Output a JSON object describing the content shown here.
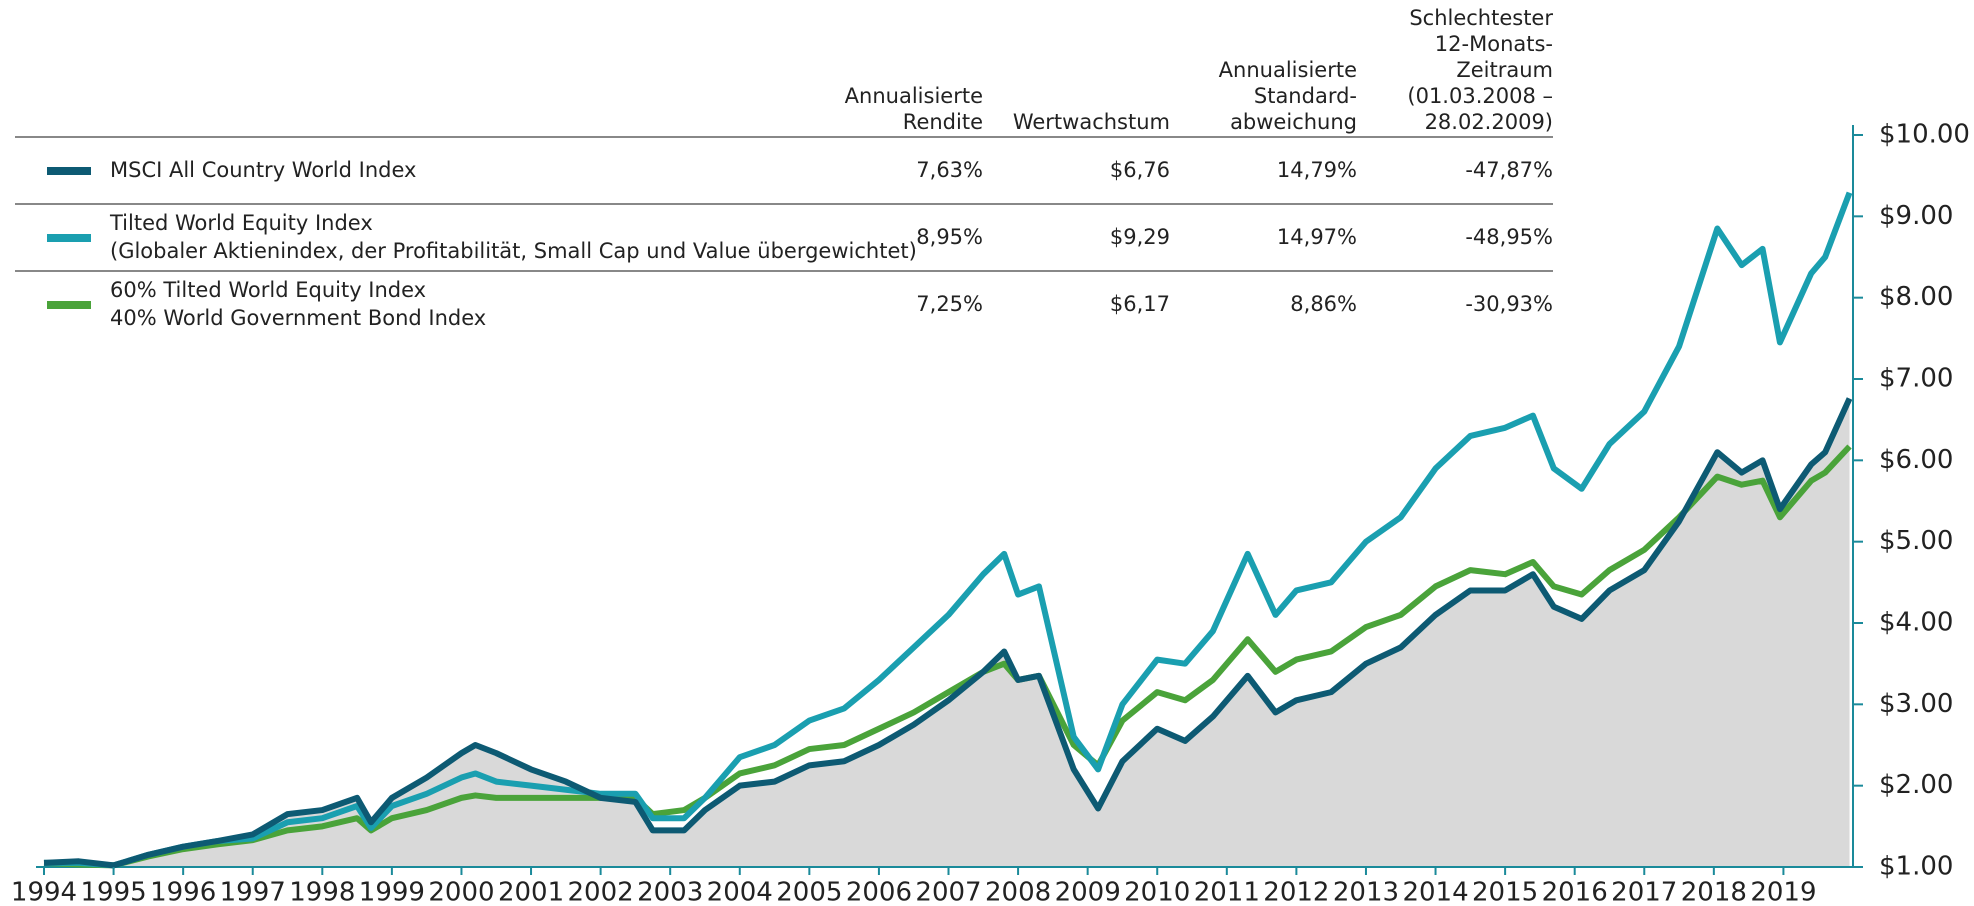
{
  "chart_data": {
    "type": "line",
    "table": {
      "columns": [
        [
          "Annualisierte",
          "Rendite"
        ],
        [
          "Wertwachstum"
        ],
        [
          "Annualisierte",
          "Standard-",
          "abweichung"
        ],
        [
          "Schlechtester",
          "12-Monats-",
          "Zeitraum",
          "(01.03.2008 –",
          "28.02.2009)"
        ]
      ],
      "rows": [
        [
          "7,63%",
          "$6,76",
          "14,79%",
          "-47,87%"
        ],
        [
          "8,95%",
          "$9,29",
          "14,97%",
          "-48,95%"
        ],
        [
          "7,25%",
          "$6,17",
          "8,86%",
          "-30,93%"
        ]
      ]
    },
    "x": [
      1994.0,
      1994.5,
      1995.0,
      1995.5,
      1996.0,
      1996.5,
      1997.0,
      1997.5,
      1998.0,
      1998.5,
      1998.7,
      1999.0,
      1999.5,
      2000.0,
      2000.2,
      2000.5,
      2001.0,
      2001.5,
      2002.0,
      2002.5,
      2002.75,
      2003.2,
      2003.5,
      2004.0,
      2004.5,
      2005.0,
      2005.5,
      2006.0,
      2006.5,
      2007.0,
      2007.5,
      2007.8,
      2008.0,
      2008.3,
      2008.8,
      2009.15,
      2009.5,
      2010.0,
      2010.4,
      2010.8,
      2011.3,
      2011.7,
      2012.0,
      2012.5,
      2013.0,
      2013.5,
      2014.0,
      2014.5,
      2015.0,
      2015.4,
      2015.7,
      2016.1,
      2016.5,
      2017.0,
      2017.5,
      2018.05,
      2018.4,
      2018.7,
      2018.95,
      2019.4,
      2019.6,
      2019.95
    ],
    "series": [
      {
        "name": [
          "MSCI All Country World Index"
        ],
        "color": "#0d5a73",
        "area": true,
        "values": [
          1.05,
          1.07,
          1.02,
          1.15,
          1.25,
          1.32,
          1.4,
          1.65,
          1.7,
          1.85,
          1.55,
          1.85,
          2.1,
          2.4,
          2.5,
          2.4,
          2.2,
          2.05,
          1.85,
          1.8,
          1.45,
          1.45,
          1.7,
          2.0,
          2.05,
          2.25,
          2.3,
          2.5,
          2.75,
          3.05,
          3.4,
          3.65,
          3.3,
          3.35,
          2.2,
          1.72,
          2.3,
          2.7,
          2.55,
          2.85,
          3.35,
          2.9,
          3.05,
          3.15,
          3.5,
          3.7,
          4.1,
          4.4,
          4.4,
          4.6,
          4.2,
          4.05,
          4.4,
          4.65,
          5.25,
          6.1,
          5.85,
          6.0,
          5.4,
          5.95,
          6.1,
          6.76
        ]
      },
      {
        "name": [
          "Tilted World Equity Index",
          "(Globaler Aktienindex, der Profitabilität, Small Cap und Value übergewichtet)"
        ],
        "color": "#1a9fb0",
        "values": [
          1.05,
          1.05,
          1.02,
          1.15,
          1.25,
          1.32,
          1.35,
          1.55,
          1.6,
          1.75,
          1.48,
          1.75,
          1.9,
          2.1,
          2.15,
          2.05,
          2.0,
          1.95,
          1.9,
          1.9,
          1.6,
          1.6,
          1.85,
          2.35,
          2.5,
          2.8,
          2.95,
          3.3,
          3.7,
          4.1,
          4.6,
          4.85,
          4.35,
          4.45,
          2.6,
          2.2,
          3.0,
          3.55,
          3.5,
          3.9,
          4.85,
          4.1,
          4.4,
          4.5,
          5.0,
          5.3,
          5.9,
          6.3,
          6.4,
          6.55,
          5.9,
          5.65,
          6.2,
          6.6,
          7.4,
          8.85,
          8.4,
          8.6,
          7.45,
          8.3,
          8.5,
          9.29
        ]
      },
      {
        "name": [
          "60% Tilted World Equity Index",
          "40% World Government Bond Index"
        ],
        "color": "#4aa33a",
        "values": [
          1.05,
          1.03,
          1.02,
          1.13,
          1.22,
          1.28,
          1.33,
          1.45,
          1.5,
          1.6,
          1.45,
          1.6,
          1.7,
          1.85,
          1.88,
          1.85,
          1.85,
          1.85,
          1.85,
          1.85,
          1.65,
          1.7,
          1.85,
          2.15,
          2.25,
          2.45,
          2.5,
          2.7,
          2.9,
          3.15,
          3.4,
          3.5,
          3.3,
          3.35,
          2.5,
          2.25,
          2.8,
          3.15,
          3.05,
          3.3,
          3.8,
          3.4,
          3.55,
          3.65,
          3.95,
          4.1,
          4.45,
          4.65,
          4.6,
          4.75,
          4.45,
          4.35,
          4.65,
          4.9,
          5.3,
          5.8,
          5.7,
          5.75,
          5.3,
          5.75,
          5.85,
          6.17
        ]
      }
    ],
    "area_color": "#d9d9d9",
    "xlim": [
      1994,
      2020
    ],
    "xticks": [
      1994,
      1995,
      1996,
      1997,
      1998,
      1999,
      2000,
      2001,
      2002,
      2003,
      2004,
      2005,
      2006,
      2007,
      2008,
      2009,
      2010,
      2011,
      2012,
      2013,
      2014,
      2015,
      2016,
      2017,
      2018,
      2019
    ],
    "ylim": [
      1,
      10
    ],
    "yticks": [
      {
        "value": 1,
        "label": "$1.00"
      },
      {
        "value": 2,
        "label": "$2.00"
      },
      {
        "value": 3,
        "label": "$3.00"
      },
      {
        "value": 4,
        "label": "$4.00"
      },
      {
        "value": 5,
        "label": "$5.00"
      },
      {
        "value": 6,
        "label": "$6.00"
      },
      {
        "value": 7,
        "label": "$7.00"
      },
      {
        "value": 8,
        "label": "$8.00"
      },
      {
        "value": 9,
        "label": "$9.00"
      },
      {
        "value": 10,
        "label": "$10.00"
      }
    ]
  }
}
